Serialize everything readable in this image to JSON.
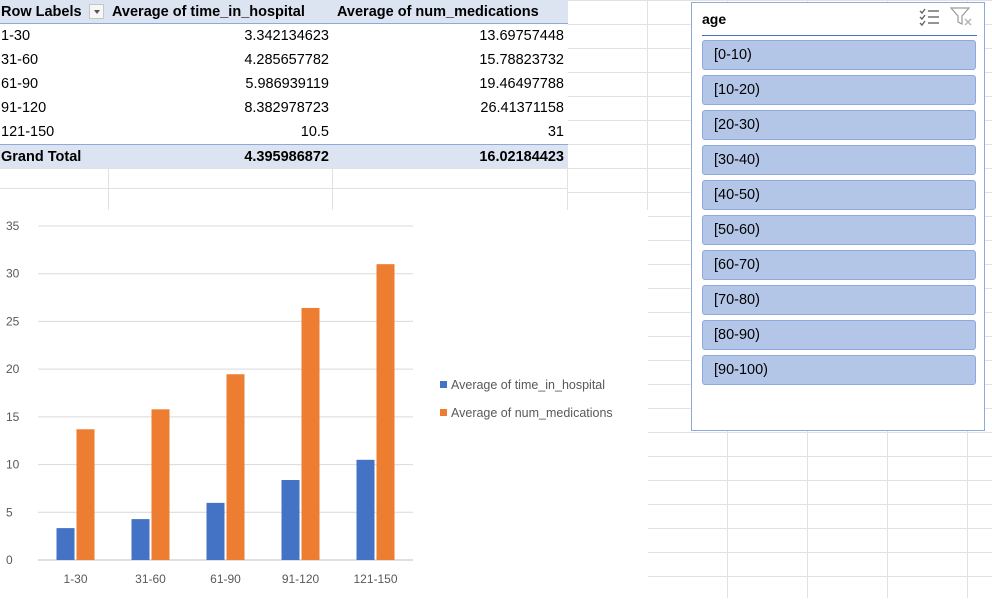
{
  "pivot": {
    "headers": {
      "row_labels": "Row Labels",
      "col1": "Average of time_in_hospital",
      "col2": "Average of num_medications"
    },
    "rows": [
      {
        "label": "1-30",
        "v1": "3.342134623",
        "v2": "13.69757448"
      },
      {
        "label": "31-60",
        "v1": "4.285657782",
        "v2": "15.78823732"
      },
      {
        "label": "61-90",
        "v1": "5.986939119",
        "v2": "19.46497788"
      },
      {
        "label": "91-120",
        "v1": "8.382978723",
        "v2": "26.41371158"
      },
      {
        "label": "121-150",
        "v1": "10.5",
        "v2": "31"
      }
    ],
    "total": {
      "label": "Grand Total",
      "v1": "4.395986872",
      "v2": "16.02184423"
    }
  },
  "chart_data": {
    "type": "bar",
    "categories": [
      "1-30",
      "31-60",
      "61-90",
      "91-120",
      "121-150"
    ],
    "series": [
      {
        "name": "Average of time_in_hospital",
        "values": [
          3.342134623,
          4.285657782,
          5.986939119,
          8.382978723,
          10.5
        ],
        "color": "#4472c4"
      },
      {
        "name": "Average of num_medications",
        "values": [
          13.69757448,
          15.78823732,
          19.46497788,
          26.41371158,
          31
        ],
        "color": "#ed7d31"
      }
    ],
    "yticks": [
      "0",
      "5",
      "10",
      "15",
      "20",
      "25",
      "30",
      "35"
    ],
    "ylim": [
      0,
      35
    ],
    "grid": true,
    "legend": "right"
  },
  "slicer": {
    "title": "age",
    "multiselect_icon": "multi-select-checklist-icon",
    "clear_filter_icon": "clear-filter-icon",
    "items": [
      "[0-10)",
      "[10-20)",
      "[20-30)",
      "[30-40)",
      "[40-50)",
      "[50-60)",
      "[60-70)",
      "[70-80)",
      "[80-90)",
      "[90-100)"
    ]
  }
}
